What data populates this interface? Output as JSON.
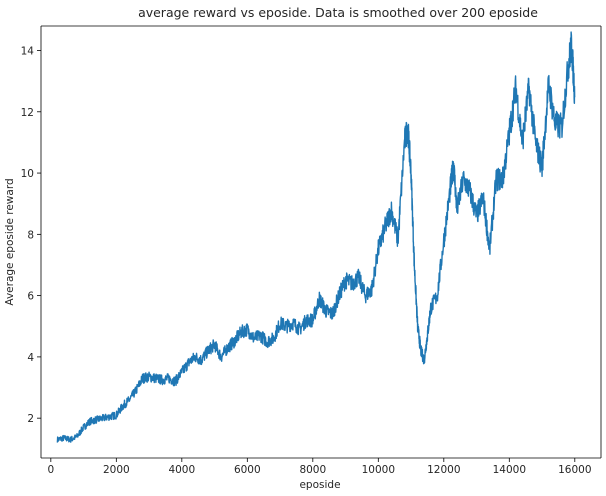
{
  "chart_data": {
    "type": "line",
    "title": "average reward vs eposide. Data is smoothed over 200 eposide",
    "xlabel": "eposide",
    "ylabel": "Average eposide reward",
    "xlim": [
      -300,
      16800
    ],
    "ylim": [
      0.7,
      14.8
    ],
    "xticks": [
      0,
      2000,
      4000,
      6000,
      8000,
      10000,
      12000,
      14000,
      16000
    ],
    "yticks": [
      2,
      4,
      6,
      8,
      10,
      12,
      14
    ],
    "grid": false,
    "line_color": "#1f77b4",
    "series": [
      {
        "x": [
          200,
          400,
          600,
          800,
          1000,
          1200,
          1400,
          1600,
          1800,
          2000,
          2200,
          2400,
          2600,
          2800,
          3000,
          3200,
          3400,
          3600,
          3800,
          4000,
          4200,
          4400,
          4600,
          4800,
          5000,
          5200,
          5400,
          5600,
          5800,
          6000,
          6200,
          6400,
          6600,
          6800,
          7000,
          7200,
          7400,
          7600,
          7800,
          8000,
          8200,
          8400,
          8600,
          8800,
          9000,
          9200,
          9400,
          9600,
          9800,
          10000,
          10200,
          10400,
          10600,
          10800,
          10900,
          11000,
          11100,
          11200,
          11300,
          11400,
          11500,
          11600,
          11800,
          12000,
          12200,
          12300,
          12400,
          12600,
          12800,
          13000,
          13200,
          13400,
          13600,
          13800,
          14000,
          14200,
          14400,
          14600,
          14800,
          15000,
          15200,
          15400,
          15600,
          15800,
          15900,
          16000
        ],
        "values": [
          1.3,
          1.35,
          1.3,
          1.4,
          1.7,
          1.9,
          1.95,
          2.0,
          2.05,
          2.1,
          2.4,
          2.6,
          2.9,
          3.3,
          3.35,
          3.3,
          3.25,
          3.3,
          3.2,
          3.5,
          3.8,
          4.0,
          3.9,
          4.2,
          4.4,
          4.0,
          4.3,
          4.5,
          4.8,
          4.9,
          4.6,
          4.7,
          4.5,
          4.6,
          5.1,
          5.0,
          5.1,
          4.9,
          5.2,
          5.2,
          5.9,
          5.5,
          5.4,
          6.0,
          6.5,
          6.4,
          6.6,
          6.0,
          6.2,
          7.5,
          8.2,
          8.8,
          7.8,
          11.0,
          11.5,
          10.0,
          7.0,
          5.0,
          4.2,
          3.9,
          4.7,
          5.6,
          6.0,
          7.8,
          9.5,
          10.3,
          8.8,
          9.8,
          9.4,
          8.6,
          9.2,
          7.5,
          9.8,
          9.8,
          11.3,
          12.8,
          11.0,
          12.8,
          11.0,
          10.2,
          12.9,
          11.6,
          11.5,
          13.5,
          14.2,
          12.5
        ]
      }
    ]
  }
}
